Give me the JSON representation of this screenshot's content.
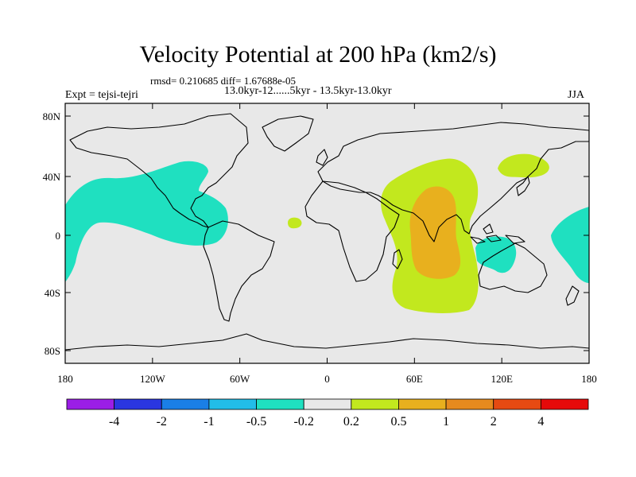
{
  "title": "Velocity Potential at 200 hPa (km2/s)",
  "stats": "rmsd= 0.210685 diff= 1.67688e-05",
  "period": "13.0kyr-12......5kyr - 13.5kyr-13.0kyr",
  "experiment": "Expt = tejsi-tejri",
  "season": "JJA",
  "map": {
    "background_color": "#e8e8e8",
    "lat_ticks": [
      "80N",
      "40N",
      "0",
      "40S",
      "80S"
    ],
    "lon_ticks": [
      "180",
      "120W",
      "60W",
      "0",
      "60E",
      "120E",
      "180"
    ]
  },
  "colorbar": {
    "colors": [
      "#9b1ee6",
      "#2a36e0",
      "#1a7fe6",
      "#22bde8",
      "#1fe0c0",
      "#e8e8e8",
      "#c2e81e",
      "#e8b01e",
      "#e68a1e",
      "#e64a12",
      "#e60a0a"
    ],
    "labels": [
      "-4",
      "-2",
      "-1",
      "-0.5",
      "-0.2",
      "0.2",
      "0.5",
      "1",
      "2",
      "4"
    ]
  },
  "anomalies": [
    {
      "name": "north-pacific-negative-region",
      "level": "-0.2 to -0.5",
      "color": "#1fe0c0"
    },
    {
      "name": "east-pacific-negative-region",
      "level": "-0.2 to -0.5",
      "color": "#1fe0c0"
    },
    {
      "name": "maritime-continent-negative-region",
      "level": "-0.2 to -0.5",
      "color": "#1fe0c0"
    },
    {
      "name": "indian-ocean-positive-region",
      "level": "0.2 to 0.5",
      "color": "#c2e81e"
    },
    {
      "name": "india-core-positive-region",
      "level": "0.5 to 1",
      "color": "#e8b01e"
    },
    {
      "name": "north-asia-positive-region",
      "level": "0.2 to 0.5",
      "color": "#c2e81e"
    },
    {
      "name": "atlantic-positive-region",
      "level": "0.2 to 0.5",
      "color": "#c2e81e"
    }
  ]
}
